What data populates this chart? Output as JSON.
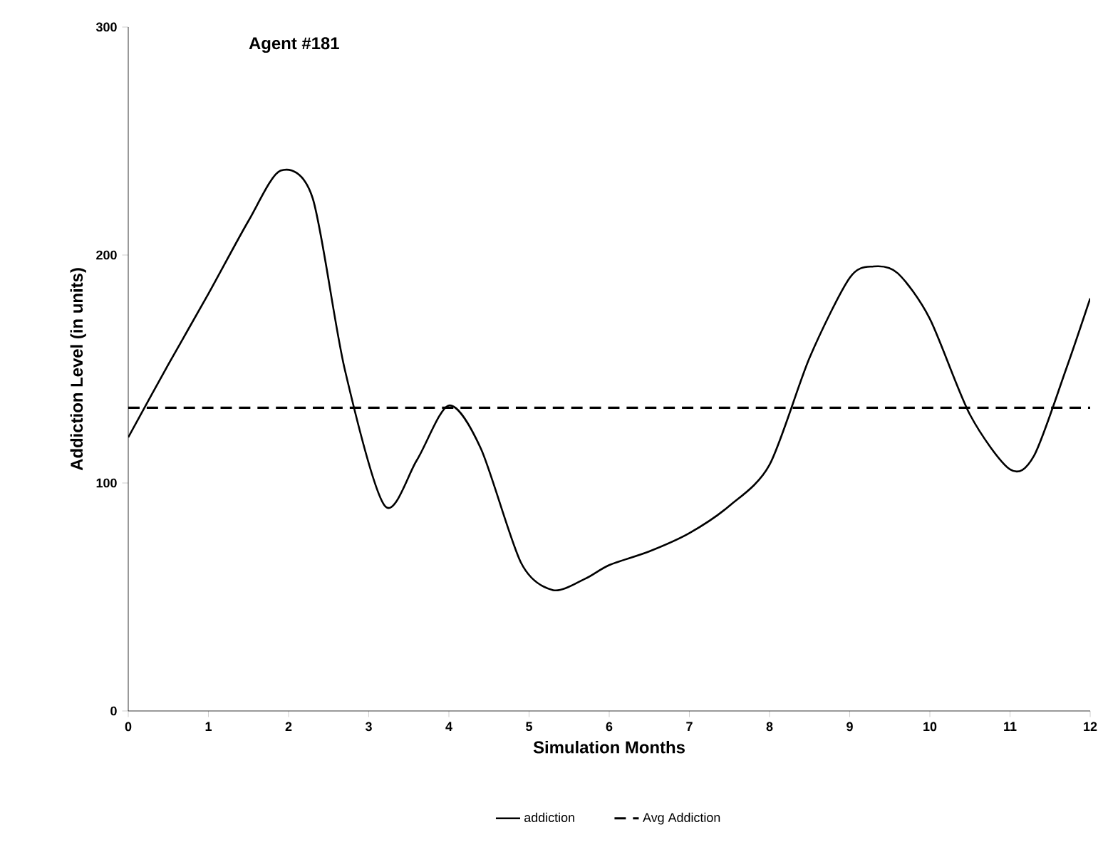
{
  "chart_data": {
    "type": "line",
    "title": "Agent #181",
    "xlabel": "Simulation Months",
    "ylabel": "Addiction Level (in units)",
    "x": [
      0,
      0.5,
      1,
      1.5,
      1.9,
      2.3,
      2.7,
      3.2,
      3.6,
      4,
      4.4,
      4.9,
      5.3,
      5.7,
      6,
      6.5,
      7,
      7.5,
      8,
      8.5,
      9,
      9.3,
      9.6,
      10,
      10.5,
      11,
      11.3,
      11.7,
      12
    ],
    "series": [
      {
        "name": "addiction",
        "color": "#000000",
        "line_style": "solid",
        "values": [
          120,
          152,
          183,
          215,
          237,
          225,
          150,
          90,
          110,
          134,
          115,
          65,
          53,
          58,
          64,
          70,
          78,
          90,
          108,
          155,
          190,
          195,
          192,
          172,
          130,
          106,
          112,
          150,
          181
        ]
      }
    ],
    "ref_lines": [
      {
        "axis": "y",
        "value": 133,
        "label": "Avg Addiction",
        "color": "#000000",
        "line_style": "dashed"
      }
    ],
    "xlim": [
      0,
      12
    ],
    "ylim": [
      0,
      300
    ],
    "xticks": [
      0,
      1,
      2,
      3,
      4,
      5,
      6,
      7,
      8,
      9,
      10,
      11,
      12
    ],
    "yticks": [
      0,
      100,
      200,
      300
    ],
    "grid": false,
    "legend": "bottom",
    "marker": "none"
  }
}
